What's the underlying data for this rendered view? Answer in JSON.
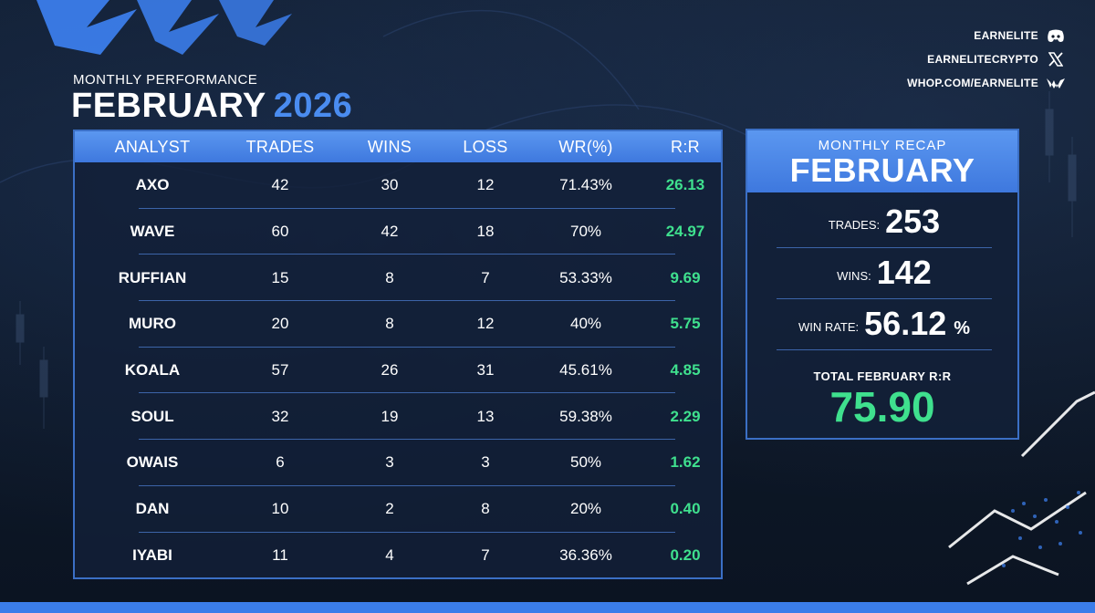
{
  "header": {
    "subtitle": "MONTHLY PERFORMANCE",
    "month": "FEBRUARY",
    "year": "2026"
  },
  "socials": [
    {
      "label": "EARNELITE",
      "icon": "discord-icon"
    },
    {
      "label": "EARNELITECRYPTO",
      "icon": "x-icon"
    },
    {
      "label": "WHOP.COM/EARNELITE",
      "icon": "whop-icon"
    }
  ],
  "table": {
    "headers": [
      "ANALYST",
      "TRADES",
      "WINS",
      "LOSS",
      "WR(%)",
      "R:R"
    ],
    "rows": [
      {
        "analyst": "AXO",
        "trades": "42",
        "wins": "30",
        "loss": "12",
        "wr": "71.43%",
        "rr": "26.13"
      },
      {
        "analyst": "WAVE",
        "trades": "60",
        "wins": "42",
        "loss": "18",
        "wr": "70%",
        "rr": "24.97"
      },
      {
        "analyst": "RUFFIAN",
        "trades": "15",
        "wins": "8",
        "loss": "7",
        "wr": "53.33%",
        "rr": "9.69"
      },
      {
        "analyst": "MURO",
        "trades": "20",
        "wins": "8",
        "loss": "12",
        "wr": "40%",
        "rr": "5.75"
      },
      {
        "analyst": "KOALA",
        "trades": "57",
        "wins": "26",
        "loss": "31",
        "wr": "45.61%",
        "rr": "4.85"
      },
      {
        "analyst": "SOUL",
        "trades": "32",
        "wins": "19",
        "loss": "13",
        "wr": "59.38%",
        "rr": "2.29"
      },
      {
        "analyst": "OWAIS",
        "trades": "6",
        "wins": "3",
        "loss": "3",
        "wr": "50%",
        "rr": "1.62"
      },
      {
        "analyst": "DAN",
        "trades": "10",
        "wins": "2",
        "loss": "8",
        "wr": "20%",
        "rr": "0.40"
      },
      {
        "analyst": "IYABI",
        "trades": "11",
        "wins": "4",
        "loss": "7",
        "wr": "36.36%",
        "rr": "0.20"
      }
    ]
  },
  "recap": {
    "label": "MONTHLY RECAP",
    "month": "FEBRUARY",
    "trades_label": "TRADES:",
    "trades": "253",
    "wins_label": "WINS:",
    "wins": "142",
    "winrate_label": "WIN RATE:",
    "winrate": "56.12",
    "winrate_unit": "%",
    "total_label": "TOTAL FEBRUARY R:R",
    "total": "75.90"
  },
  "colors": {
    "accent": "#4a8cf0",
    "positive": "#3fe08e",
    "background": "#0d1726"
  }
}
